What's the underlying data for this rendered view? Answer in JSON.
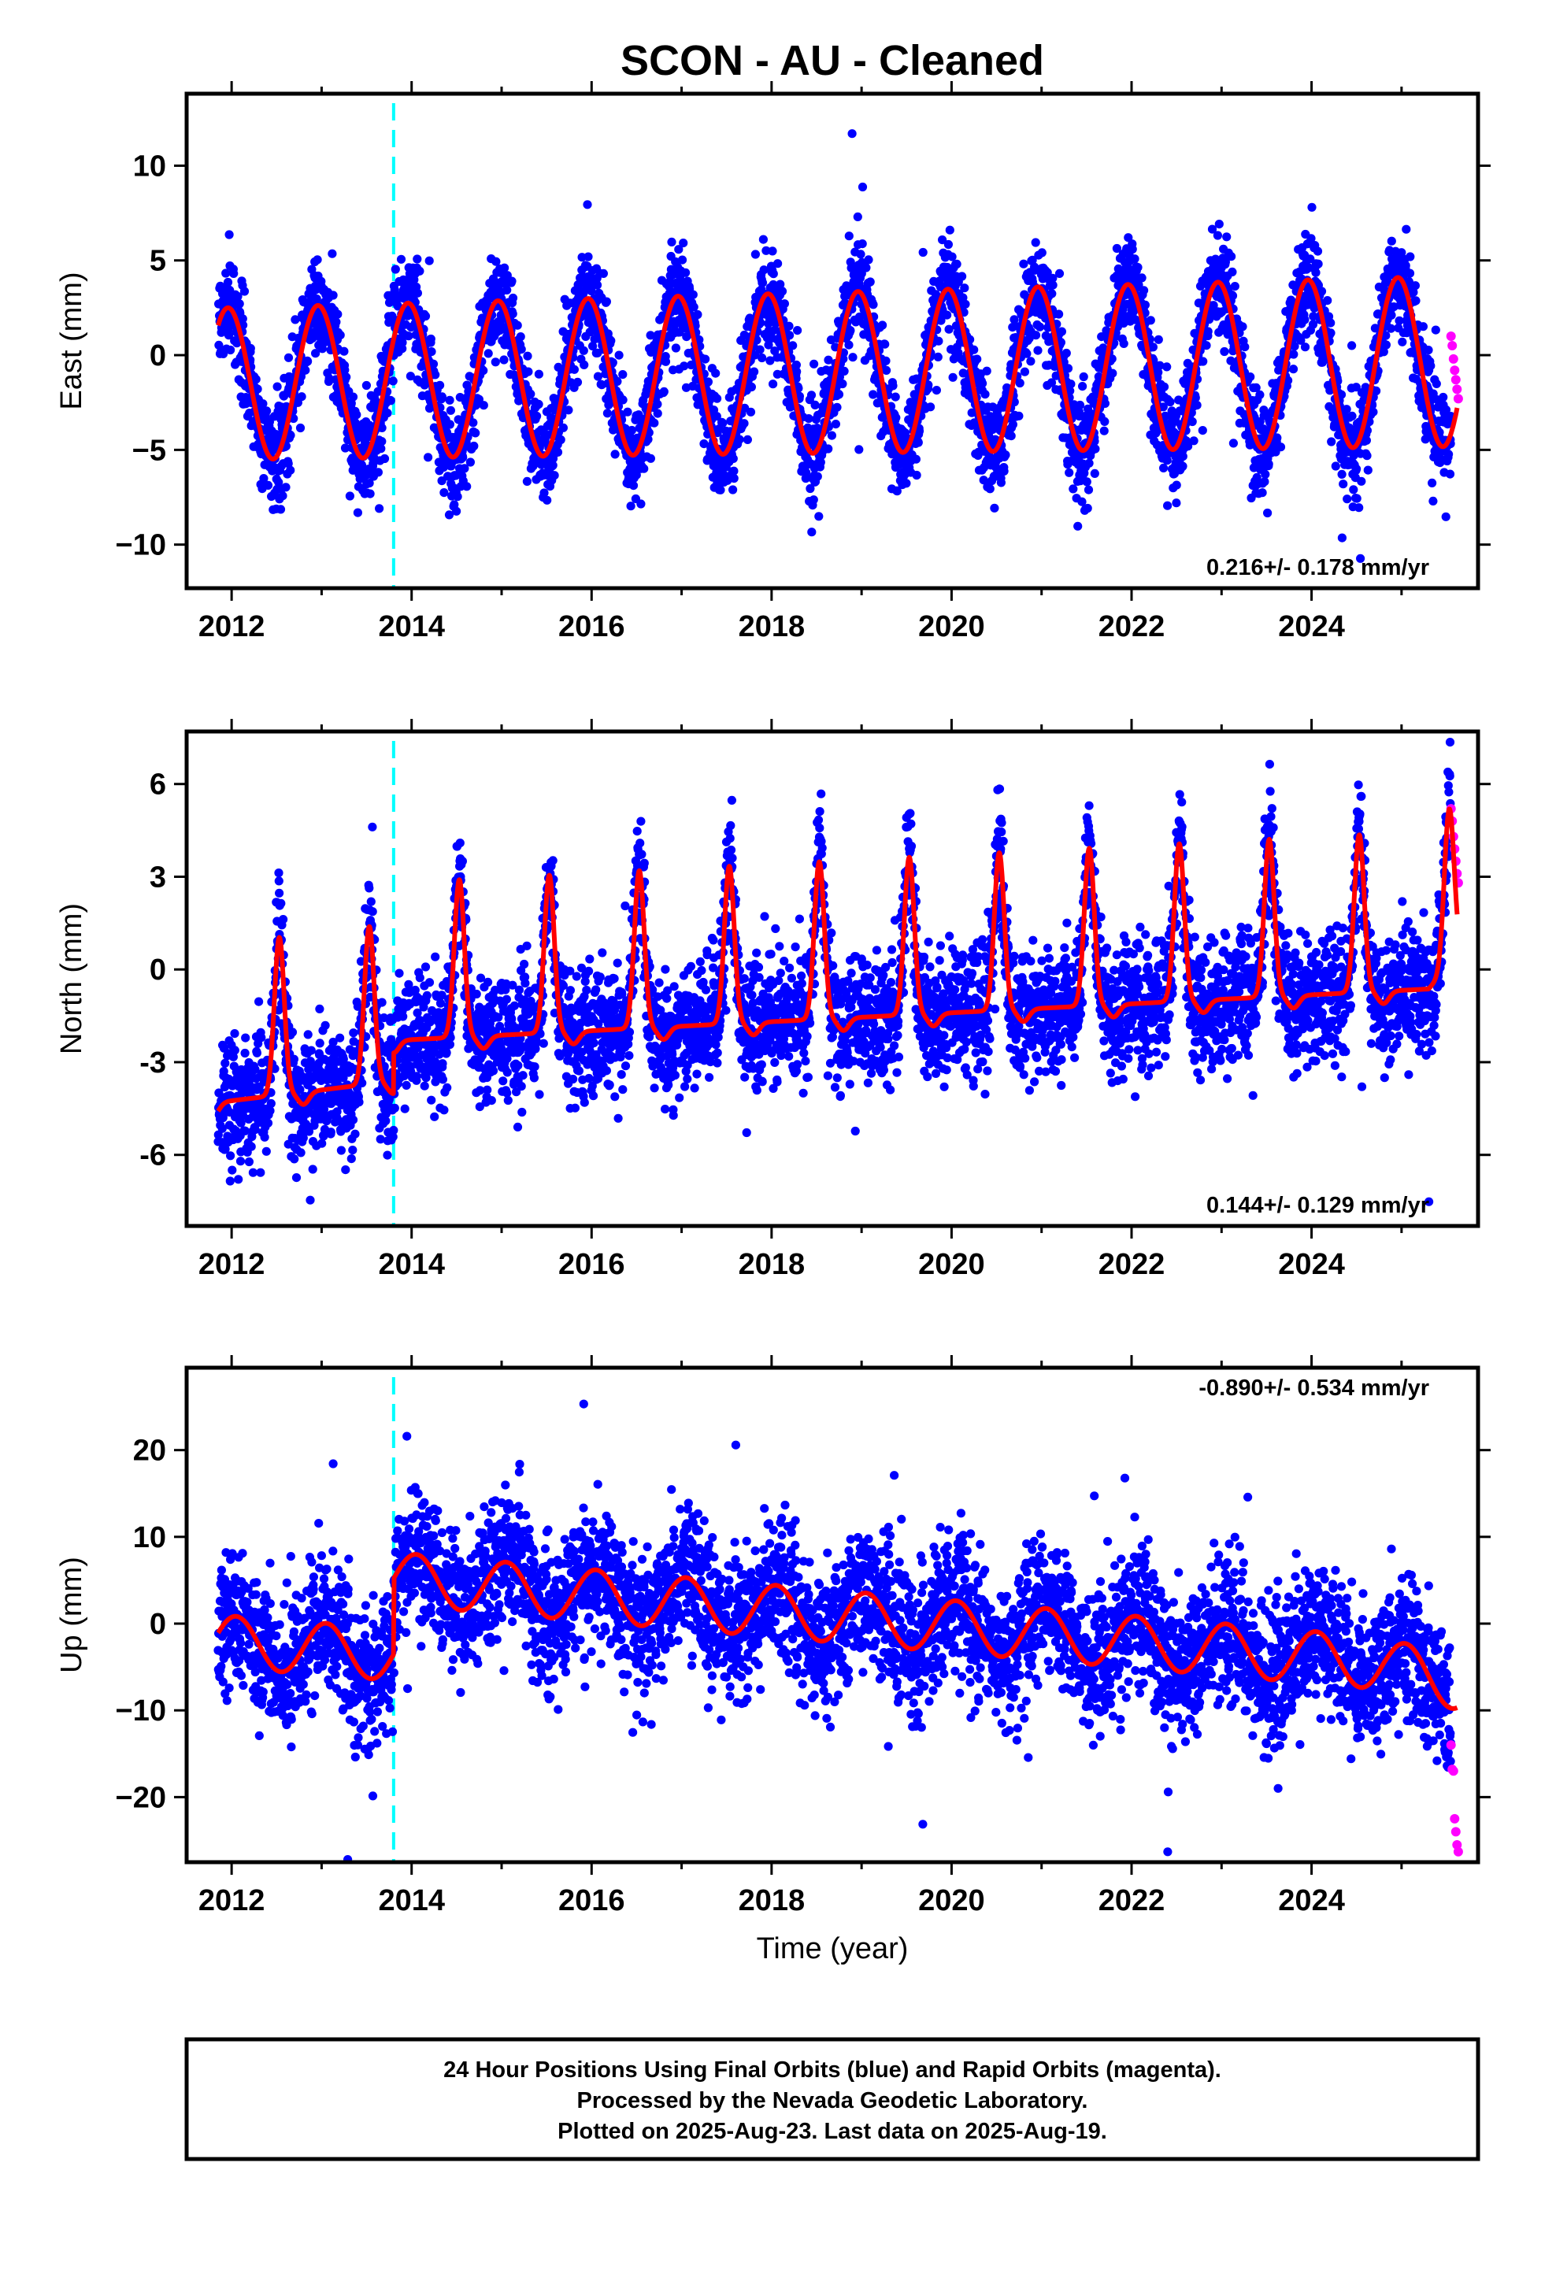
{
  "title": "SCON  - AU - Cleaned",
  "xlabel": "Time (year)",
  "caption": [
    "24 Hour Positions Using Final Orbits (blue) and Rapid Orbits (magenta).",
    "Processed by the Nevada Geodetic Laboratory.",
    "Plotted on 2025-Aug-23. Last data on 2025-Aug-19."
  ],
  "colors": {
    "final_orbit_points": "#0000ff",
    "rapid_orbit_points": "#ff00ff",
    "model_fit": "#ff0000",
    "equipment_change": "#00ffff"
  },
  "chart_data": [
    {
      "type": "scatter",
      "name": "east",
      "ylabel": "East (mm)",
      "rate_text": "0.216+/- 0.178 mm/yr",
      "rate_position": "bottom-right",
      "xlim": [
        2011.5,
        2025.85
      ],
      "ylim": [
        -12.3,
        13.8
      ],
      "xticks": [
        "2012",
        "2014",
        "2016",
        "2018",
        "2020",
        "2022",
        "2024"
      ],
      "yticks": [
        "10",
        "5",
        "0",
        "−5",
        "−10"
      ],
      "ytick_values": [
        10,
        5,
        0,
        -5,
        -10
      ],
      "model": {
        "type": "sinusoid-plus-trend",
        "offset": -1.5,
        "trend_mm_per_yr": 0.216,
        "annual_amplitude_start": 4.0,
        "annual_amplitude_end": 4.1,
        "phase_peak_month": "December",
        "ref_year": 2012.0
      },
      "noise_sd": 1.3,
      "equipment_change_year": 2013.8,
      "series": [
        {
          "name": "Final Orbits",
          "color": "#0000ff",
          "x_range": [
            2011.85,
            2025.55
          ]
        },
        {
          "name": "Rapid Orbits",
          "color": "#ff00ff",
          "x_range": [
            2025.55,
            2025.63
          ],
          "y_values": [
            1.0,
            0.5,
            -0.2,
            -0.8,
            -1.3,
            -1.8,
            -2.3
          ]
        }
      ]
    },
    {
      "type": "scatter",
      "name": "north",
      "ylabel": "North (mm)",
      "rate_text": "0.144+/- 0.129 mm/yr",
      "rate_position": "bottom-right",
      "xlim": [
        2011.5,
        2025.85
      ],
      "ylim": [
        -8.3,
        7.7
      ],
      "xticks": [
        "2012",
        "2014",
        "2016",
        "2018",
        "2020",
        "2022",
        "2024"
      ],
      "yticks": [
        "6",
        "3",
        "0",
        "-3",
        "-6"
      ],
      "ytick_values": [
        6,
        3,
        0,
        -3,
        -6
      ],
      "model": {
        "type": "peaked-annual-plus-trend",
        "trend_mm_per_yr": 0.144,
        "baseline_start": -4.3,
        "baseline_mid": -2.2,
        "baseline_end": -0.6,
        "peak_height_start": 5.0,
        "peak_height_end": 5.0,
        "peak_month": "July"
      },
      "noise_sd": 1.0,
      "equipment_change_year": 2013.8,
      "series": [
        {
          "name": "Final Orbits",
          "color": "#0000ff",
          "x_range": [
            2011.85,
            2025.55
          ]
        },
        {
          "name": "Rapid Orbits",
          "color": "#ff00ff",
          "x_range": [
            2025.55,
            2025.63
          ],
          "y_values": [
            5.2,
            4.8,
            4.3,
            3.9,
            3.5,
            3.1,
            2.8
          ]
        }
      ]
    },
    {
      "type": "scatter",
      "name": "up",
      "ylabel": "Up (mm)",
      "rate_text": "-0.890+/- 0.534 mm/yr",
      "rate_position": "top-right",
      "xlim": [
        2011.5,
        2025.85
      ],
      "ylim": [
        -27.5,
        29.5
      ],
      "xticks": [
        "2012",
        "2014",
        "2016",
        "2018",
        "2020",
        "2022",
        "2024"
      ],
      "yticks": [
        "20",
        "10",
        "0",
        "−10",
        "−20"
      ],
      "ytick_values": [
        20,
        10,
        0,
        -10,
        -20
      ],
      "model": {
        "type": "sinusoid-plus-trend-with-offset",
        "trend_mm_per_yr": -0.89,
        "level_before_2013_8": -2.5,
        "level_after_2013_8": 5.5,
        "level_2025_6": -5.5,
        "annual_amplitude": 3.0,
        "phase_peak_month": "January"
      },
      "noise_sd": 4.0,
      "equipment_change_year": 2013.8,
      "series": [
        {
          "name": "Final Orbits",
          "color": "#0000ff",
          "x_range": [
            2011.85,
            2025.55
          ]
        },
        {
          "name": "Rapid Orbits",
          "color": "#ff00ff",
          "x_range": [
            2025.55,
            2025.63
          ],
          "y_values": [
            -14.0,
            -16.8,
            -17.0,
            -22.5,
            -24.0,
            -25.5,
            -26.3
          ]
        }
      ]
    }
  ]
}
